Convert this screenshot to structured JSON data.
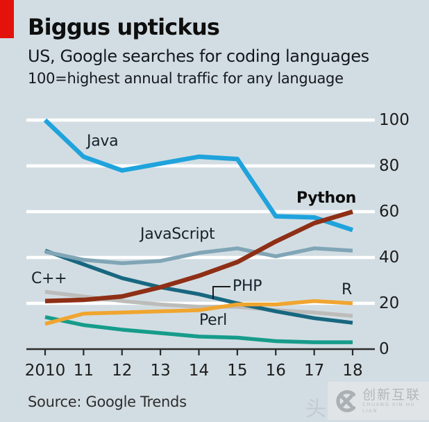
{
  "header": {
    "title": "Biggus uptickus",
    "subtitle": "US, Google searches for coding languages",
    "note": "100=highest annual traffic for any language"
  },
  "colors": {
    "background": "#d2dde3",
    "brand_red": "#e3120b",
    "gridline": "#ffffff",
    "axis": "#2a2a2a",
    "text": "#14191d",
    "watermark_gray": "#b2b7bb"
  },
  "chart_data": {
    "type": "line",
    "x": [
      2010,
      2011,
      2012,
      2013,
      2014,
      2015,
      2016,
      2017,
      2018
    ],
    "x_tick_labels": [
      "2010",
      "11",
      "12",
      "13",
      "14",
      "15",
      "16",
      "17",
      "18"
    ],
    "y_ticks": [
      0,
      20,
      40,
      60,
      80,
      100
    ],
    "ylim": [
      0,
      100
    ],
    "grid": "horizontal-white",
    "legend_position": "inline-labels",
    "series": [
      {
        "name": "Java",
        "color": "#1fa3dc",
        "values": [
          100,
          84,
          78,
          81,
          84,
          83,
          58,
          57.5,
          52
        ]
      },
      {
        "name": "Python",
        "color": "#8e2f16",
        "values": [
          21,
          21.5,
          23,
          27,
          32,
          38,
          47,
          55,
          60
        ]
      },
      {
        "name": "JavaScript",
        "color": "#80a5b6",
        "values": [
          42.5,
          39,
          37.5,
          38.5,
          42,
          44,
          40.5,
          44,
          43
        ]
      },
      {
        "name": "PHP",
        "color": "#186780",
        "values": [
          43,
          37,
          31,
          27,
          24,
          20,
          16.5,
          13.5,
          11.5
        ]
      },
      {
        "name": "C++",
        "color": "#bcbcba",
        "values": [
          25,
          23,
          21,
          19.5,
          18.5,
          18.5,
          17,
          16,
          14.5
        ]
      },
      {
        "name": "R",
        "color": "#f0a52f",
        "values": [
          11,
          15.5,
          16,
          16.5,
          17,
          19.5,
          19.5,
          21,
          20
        ]
      },
      {
        "name": "Perl",
        "color": "#169c8b",
        "values": [
          14,
          10.5,
          8.5,
          7,
          5.5,
          5,
          3.5,
          3,
          3
        ]
      }
    ]
  },
  "source": "Source: Google Trends",
  "watermark": {
    "partial_char": "头",
    "logo": "cx-circle-logo",
    "cn": "创新互联",
    "en": "CHUANG XIN HU LIAN"
  }
}
